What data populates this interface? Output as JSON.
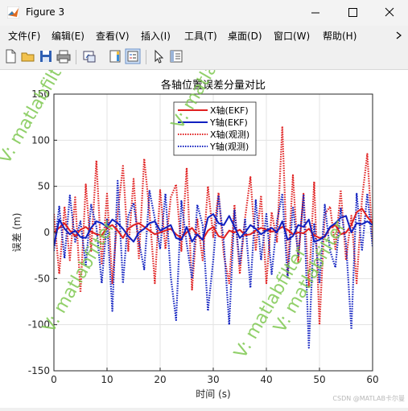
{
  "window": {
    "title": "Figure 3"
  },
  "menu": [
    "文件(F)",
    "编辑(E)",
    "查看(V)",
    "插入(I)",
    "工具(T)",
    "桌面(D)",
    "窗口(W)",
    "帮助(H)"
  ],
  "watermarks": [
    "V: matlabfilter",
    "V: matlabfilter",
    "V: matlabfilter",
    "V: matlabfilter",
    "V: matlabfilter"
  ],
  "footer_credit": "CSDN @MATLAB卡尔曼",
  "colors": {
    "red": "#e02020",
    "blue": "#1020c0",
    "watermark": "#7ec850"
  },
  "chart_data": {
    "type": "line",
    "title": "各轴位置误差分量对比",
    "xlabel": "时间 (s)",
    "ylabel": "误差 (m)",
    "xlim": [
      0,
      60
    ],
    "ylim": [
      -150,
      150
    ],
    "xticks": [
      0,
      10,
      20,
      30,
      40,
      50,
      60
    ],
    "yticks": [
      -150,
      -100,
      -50,
      0,
      50,
      100,
      150
    ],
    "grid": true,
    "legend_position": "top-center",
    "series": [
      {
        "name": "X轴(EKF)",
        "color": "#e02020",
        "style": "solid",
        "x": [
          0,
          1,
          2,
          3,
          4,
          5,
          6,
          7,
          8,
          9,
          10,
          11,
          12,
          13,
          14,
          15,
          16,
          17,
          18,
          19,
          20,
          21,
          22,
          23,
          24,
          25,
          26,
          27,
          28,
          29,
          30,
          31,
          32,
          33,
          34,
          35,
          36,
          37,
          38,
          39,
          40,
          41,
          42,
          43,
          44,
          45,
          46,
          47,
          48,
          49,
          50,
          51,
          52,
          53,
          54,
          55,
          56,
          57,
          58,
          59,
          60
        ],
        "y": [
          0,
          5,
          10,
          2,
          -4,
          3,
          6,
          1,
          -2,
          -3,
          5,
          8,
          2,
          -6,
          4,
          8,
          10,
          6,
          2,
          -2,
          0,
          2,
          4,
          -2,
          -6,
          0,
          5,
          -3,
          -8,
          2,
          6,
          -4,
          -6,
          2,
          0,
          3,
          -3,
          -2,
          2,
          5,
          3,
          1,
          2,
          6,
          3,
          -2,
          0,
          -1,
          4,
          -3,
          -6,
          -5,
          5,
          8,
          -2,
          0,
          8,
          22,
          26,
          17,
          10
        ]
      },
      {
        "name": "Y轴(EKF)",
        "color": "#1020c0",
        "style": "solid",
        "x": [
          0,
          1,
          2,
          3,
          4,
          5,
          6,
          7,
          8,
          9,
          10,
          11,
          12,
          13,
          14,
          15,
          16,
          17,
          18,
          19,
          20,
          21,
          22,
          23,
          24,
          25,
          26,
          27,
          28,
          29,
          30,
          31,
          32,
          33,
          34,
          35,
          36,
          37,
          38,
          39,
          40,
          41,
          42,
          43,
          44,
          45,
          46,
          47,
          48,
          49,
          50,
          51,
          52,
          53,
          54,
          55,
          56,
          57,
          58,
          59,
          60
        ],
        "y": [
          -15,
          14,
          4,
          -2,
          2,
          -5,
          -6,
          5,
          12,
          10,
          6,
          14,
          10,
          4,
          -4,
          -10,
          0,
          4,
          10,
          12,
          2,
          5,
          8,
          -6,
          -8,
          6,
          -10,
          -2,
          -8,
          16,
          20,
          10,
          8,
          18,
          6,
          -6,
          0,
          8,
          4,
          -2,
          2,
          5,
          0,
          12,
          -8,
          -4,
          8,
          6,
          14,
          -10,
          -8,
          -4,
          6,
          10,
          16,
          18,
          0,
          10,
          9,
          12,
          8
        ]
      },
      {
        "name": "X轴(观测)",
        "color": "#e02020",
        "style": "dotted",
        "x": [
          0,
          1,
          2,
          3,
          4,
          5,
          6,
          7,
          8,
          9,
          10,
          11,
          12,
          13,
          14,
          15,
          16,
          17,
          18,
          19,
          20,
          21,
          22,
          23,
          24,
          25,
          26,
          27,
          28,
          29,
          30,
          31,
          32,
          33,
          34,
          35,
          36,
          37,
          38,
          39,
          40,
          41,
          42,
          43,
          44,
          45,
          46,
          47,
          48,
          49,
          50,
          51,
          52,
          53,
          54,
          55,
          56,
          57,
          58,
          59,
          60
        ],
        "y": [
          20,
          -45,
          28,
          -30,
          38,
          -65,
          52,
          -20,
          78,
          -35,
          42,
          -55,
          20,
          72,
          -20,
          58,
          -28,
          80,
          22,
          -55,
          46,
          -18,
          38,
          52,
          -20,
          70,
          -62,
          15,
          -30,
          50,
          -5,
          43,
          -25,
          -55,
          30,
          -45,
          16,
          60,
          -20,
          40,
          -55,
          22,
          -10,
          115,
          -45,
          62,
          -32,
          42,
          -60,
          55,
          -100,
          20,
          28,
          -18,
          46,
          -30,
          18,
          -55,
          36,
          85,
          -10
        ]
      },
      {
        "name": "Y轴(观测)",
        "color": "#1020c0",
        "style": "dotted",
        "x": [
          0,
          1,
          2,
          3,
          4,
          5,
          6,
          7,
          8,
          9,
          10,
          11,
          12,
          13,
          14,
          15,
          16,
          17,
          18,
          19,
          20,
          21,
          22,
          23,
          24,
          25,
          26,
          27,
          28,
          29,
          30,
          31,
          32,
          33,
          34,
          35,
          36,
          37,
          38,
          39,
          40,
          41,
          42,
          43,
          44,
          45,
          46,
          47,
          48,
          49,
          50,
          51,
          52,
          53,
          54,
          55,
          56,
          57,
          58,
          59,
          60
        ],
        "y": [
          -20,
          28,
          -28,
          40,
          -10,
          12,
          -35,
          30,
          6,
          -55,
          14,
          -85,
          56,
          -55,
          18,
          32,
          -10,
          -40,
          45,
          15,
          -18,
          42,
          -48,
          -95,
          34,
          -12,
          -50,
          30,
          8,
          -85,
          -30,
          40,
          -12,
          -100,
          24,
          -35,
          15,
          -60,
          35,
          -30,
          20,
          -45,
          12,
          42,
          -50,
          28,
          -25,
          40,
          -125,
          10,
          -55,
          30,
          -20,
          -38,
          26,
          -12,
          -105,
          42,
          -20,
          42,
          -15
        ]
      }
    ]
  }
}
